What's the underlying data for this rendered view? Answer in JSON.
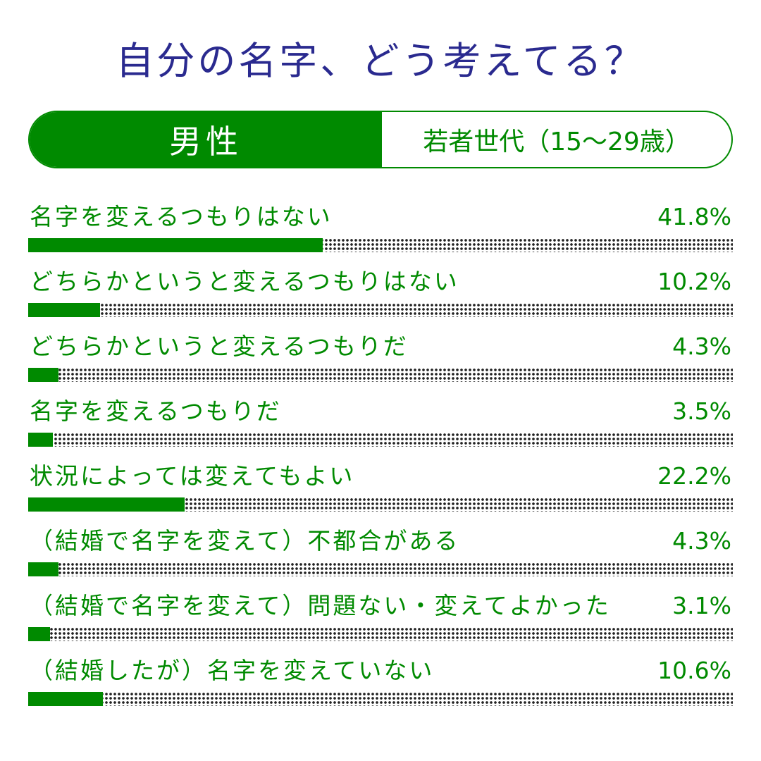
{
  "title": "自分の名字、どう考えてる？",
  "header": {
    "gender": "男性",
    "group": "若者世代（15～29歳）"
  },
  "colors": {
    "accent": "#008a00",
    "title": "#2a2a8f"
  },
  "chart_data": {
    "type": "bar",
    "orientation": "horizontal",
    "title": "自分の名字、どう考えてる？",
    "xlim": [
      0,
      100
    ],
    "unit": "%",
    "categories": [
      "名字を変えるつもりはない",
      "どちらかというと変えるつもりはない",
      "どちらかというと変えるつもりだ",
      "名字を変えるつもりだ",
      "状況によっては変えてもよい",
      "（結婚で名字を変えて）不都合がある",
      "（結婚で名字を変えて）問題ない・変えてよかった",
      "（結婚したが）名字を変えていない"
    ],
    "values": [
      41.8,
      10.2,
      4.3,
      3.5,
      22.2,
      4.3,
      3.1,
      10.6
    ],
    "value_labels": [
      "41.8%",
      "10.2%",
      "4.3%",
      "3.5%",
      "22.2%",
      "4.3%",
      "3.1%",
      "10.6%"
    ]
  }
}
